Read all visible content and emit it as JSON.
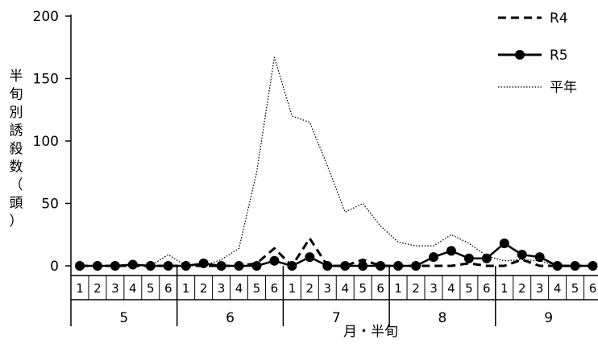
{
  "chart_data": {
    "type": "line",
    "ylabel": "半旬別誘殺数（頭）",
    "xlabel": "月・半旬",
    "ylim": [
      0,
      200
    ],
    "yticks": [
      0,
      50,
      100,
      150,
      200
    ],
    "grid": false,
    "legend_position": "top-right",
    "months": [
      "5",
      "6",
      "7",
      "8",
      "9"
    ],
    "halfmonths": [
      "1",
      "2",
      "3",
      "4",
      "5",
      "6",
      "1",
      "2",
      "3",
      "4",
      "5",
      "6",
      "1",
      "2",
      "3",
      "4",
      "5",
      "6",
      "1",
      "2",
      "3",
      "4",
      "5",
      "6",
      "1",
      "2",
      "3",
      "4",
      "5",
      "6"
    ],
    "series": [
      {
        "name": "R4",
        "style": "dashed",
        "values": [
          0,
          0,
          0,
          0,
          0,
          0,
          0,
          0,
          0,
          0,
          2,
          14,
          0,
          22,
          0,
          0,
          5,
          0,
          0,
          0,
          0,
          0,
          2,
          0,
          0,
          5,
          0,
          0,
          0,
          0
        ]
      },
      {
        "name": "R5",
        "style": "solid-marker",
        "values": [
          0,
          0,
          0,
          1,
          0,
          0,
          0,
          2,
          0,
          0,
          0,
          4,
          0,
          7,
          0,
          0,
          0,
          0,
          0,
          0,
          7,
          12,
          6,
          6,
          18,
          9,
          7,
          0,
          0,
          0
        ]
      },
      {
        "name": "平年",
        "style": "dotted",
        "values": [
          0,
          0,
          0,
          0,
          0,
          9,
          0,
          0,
          5,
          14,
          75,
          167,
          120,
          115,
          80,
          43,
          50,
          32,
          19,
          16,
          16,
          25,
          18,
          8,
          4,
          5,
          4,
          0,
          0,
          0
        ]
      }
    ]
  }
}
